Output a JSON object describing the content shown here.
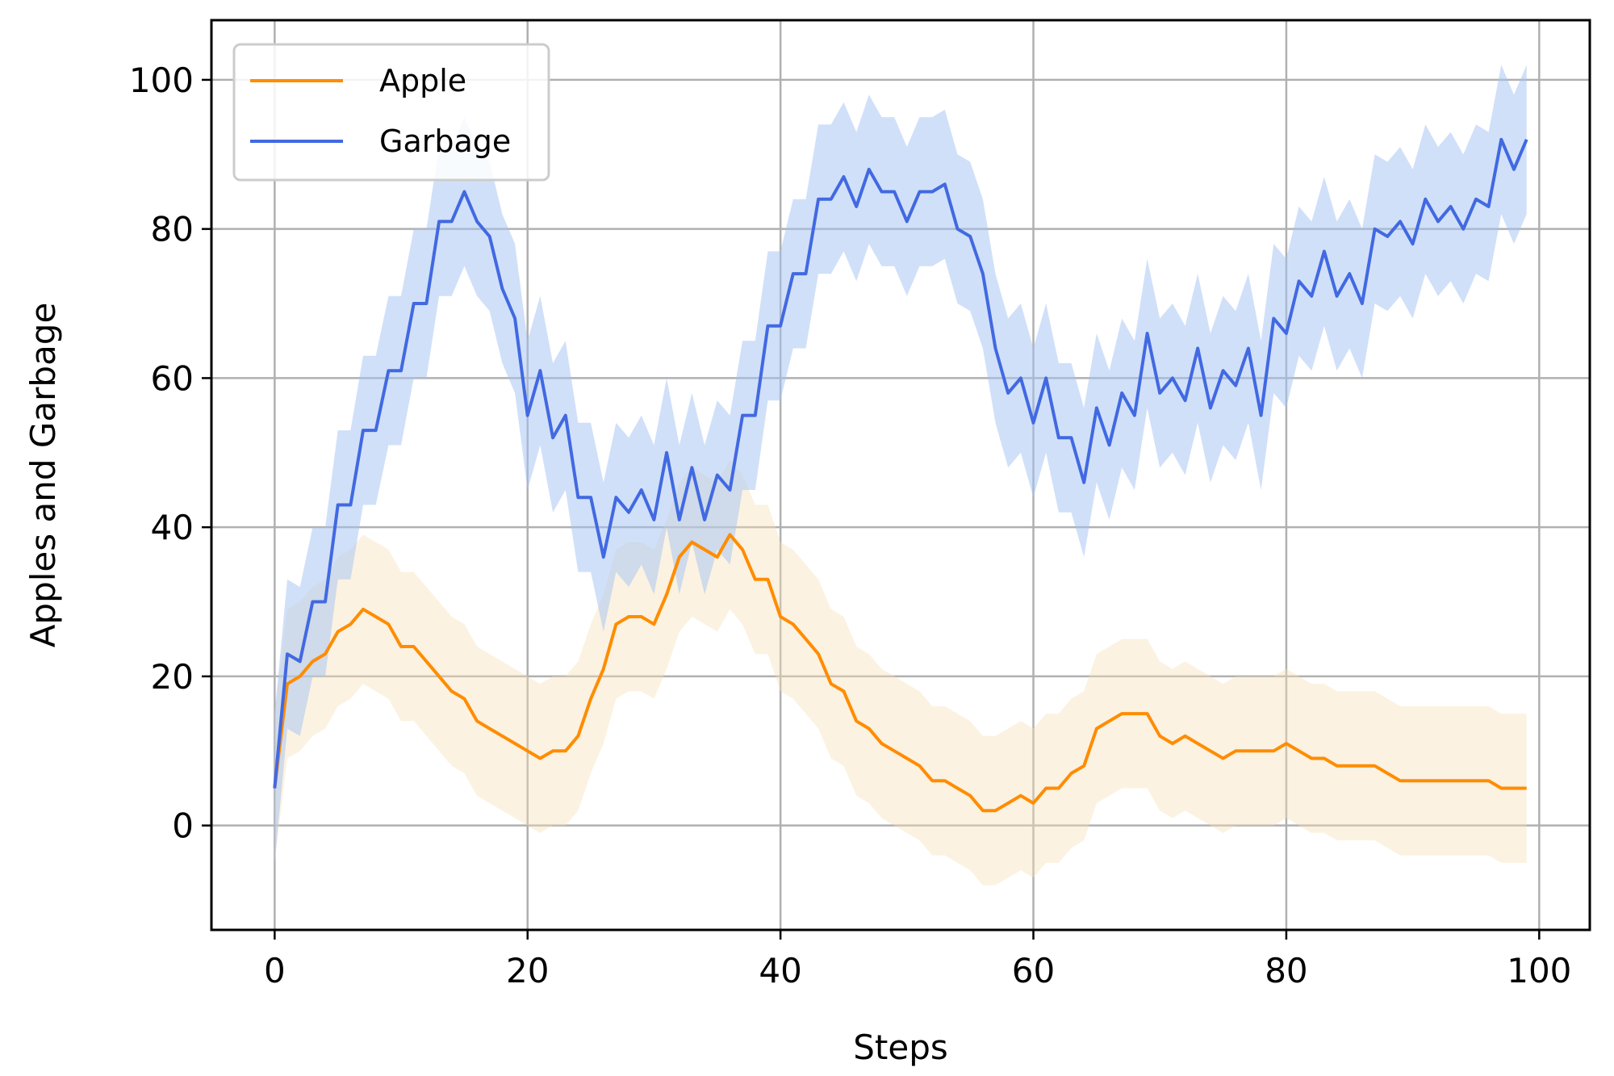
{
  "chart_data": {
    "type": "line",
    "title": "",
    "xlabel": "Steps",
    "ylabel": "Apples and Garbage",
    "xlim": [
      -5,
      104
    ],
    "ylim": [
      -14,
      108
    ],
    "xticks": [
      0,
      20,
      40,
      60,
      80,
      100
    ],
    "yticks": [
      0,
      20,
      40,
      60,
      80,
      100
    ],
    "grid": true,
    "legend_position": "top-left",
    "series": [
      {
        "name": "Apple",
        "color": "#ff8c00",
        "band_color": "#f5deb3",
        "band_opacity": 0.4,
        "band_halfwidth": 10,
        "y": [
          5,
          19,
          20,
          22,
          23,
          26,
          27,
          29,
          28,
          27,
          24,
          24,
          22,
          20,
          18,
          17,
          14,
          13,
          12,
          11,
          10,
          9,
          10,
          10,
          12,
          17,
          21,
          27,
          28,
          28,
          27,
          31,
          36,
          38,
          37,
          36,
          39,
          37,
          33,
          33,
          28,
          27,
          25,
          23,
          19,
          18,
          14,
          13,
          11,
          10,
          9,
          8,
          6,
          6,
          5,
          4,
          2,
          2,
          3,
          4,
          3,
          5,
          5,
          7,
          8,
          13,
          14,
          15,
          15,
          15,
          12,
          11,
          12,
          11,
          10,
          9,
          10,
          10,
          10,
          10,
          11,
          10,
          9,
          9,
          8,
          8,
          8,
          8,
          7,
          6,
          6,
          6,
          6,
          6,
          6,
          6,
          6,
          5,
          5,
          5
        ]
      },
      {
        "name": "Garbage",
        "color": "#4169e1",
        "band_color": "#a4c2f4",
        "band_opacity": 0.5,
        "band_halfwidth": 10,
        "y": [
          5,
          23,
          22,
          30,
          30,
          43,
          43,
          53,
          53,
          61,
          61,
          70,
          70,
          81,
          81,
          85,
          81,
          79,
          72,
          68,
          55,
          61,
          52,
          55,
          44,
          44,
          36,
          44,
          42,
          45,
          41,
          50,
          41,
          48,
          41,
          47,
          45,
          55,
          55,
          67,
          67,
          74,
          74,
          84,
          84,
          87,
          83,
          88,
          85,
          85,
          81,
          85,
          85,
          86,
          80,
          79,
          74,
          64,
          58,
          60,
          54,
          60,
          52,
          52,
          46,
          56,
          51,
          58,
          55,
          66,
          58,
          60,
          57,
          64,
          56,
          61,
          59,
          64,
          55,
          68,
          66,
          73,
          71,
          77,
          71,
          74,
          70,
          80,
          79,
          81,
          78,
          84,
          81,
          83,
          80,
          84,
          83,
          92,
          88,
          92
        ]
      }
    ]
  }
}
